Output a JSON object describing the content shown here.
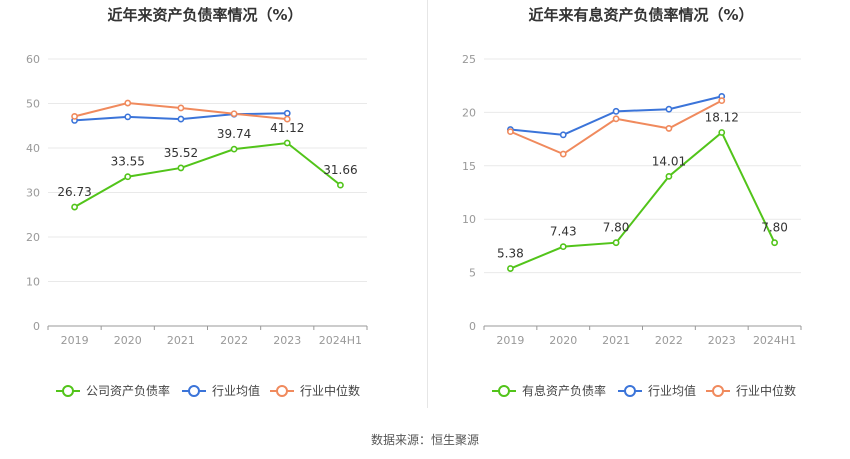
{
  "footer": {
    "source": "数据来源：恒生聚源"
  },
  "chart_data": [
    {
      "type": "line",
      "title": "近年来资产负债率情况（%）",
      "categories": [
        "2019",
        "2020",
        "2021",
        "2022",
        "2023",
        "2024H1"
      ],
      "ylim": [
        0,
        60
      ],
      "yticks": [
        0,
        10,
        20,
        30,
        40,
        50,
        60
      ],
      "grid": true,
      "legend_position": "bottom",
      "series": [
        {
          "name": "公司资产负债率",
          "color": "#52c41a",
          "values": [
            26.73,
            33.55,
            35.52,
            39.74,
            41.12,
            31.66
          ],
          "labels": [
            "26.73",
            "33.55",
            "35.52",
            "39.74",
            "41.12",
            "31.66"
          ]
        },
        {
          "name": "行业均值",
          "color": "#3b74d9",
          "values": [
            46.2,
            47.0,
            46.5,
            47.6,
            47.8,
            null
          ]
        },
        {
          "name": "行业中位数",
          "color": "#f08a5d",
          "values": [
            47.1,
            50.1,
            49.0,
            47.7,
            46.5,
            null
          ]
        }
      ]
    },
    {
      "type": "line",
      "title": "近年来有息资产负债率情况（%）",
      "categories": [
        "2019",
        "2020",
        "2021",
        "2022",
        "2023",
        "2024H1"
      ],
      "ylim": [
        0,
        25
      ],
      "yticks": [
        0,
        5,
        10,
        15,
        20,
        25
      ],
      "grid": true,
      "legend_position": "bottom",
      "series": [
        {
          "name": "有息资产负债率",
          "color": "#52c41a",
          "values": [
            5.38,
            7.43,
            7.8,
            14.01,
            18.12,
            7.8
          ],
          "labels": [
            "5.38",
            "7.43",
            "7.80",
            "14.01",
            "18.12",
            "7.80"
          ]
        },
        {
          "name": "行业均值",
          "color": "#3b74d9",
          "values": [
            18.4,
            17.9,
            20.1,
            20.3,
            21.5,
            null
          ]
        },
        {
          "name": "行业中位数",
          "color": "#f08a5d",
          "values": [
            18.2,
            16.1,
            19.4,
            18.5,
            21.1,
            null
          ]
        }
      ]
    }
  ]
}
